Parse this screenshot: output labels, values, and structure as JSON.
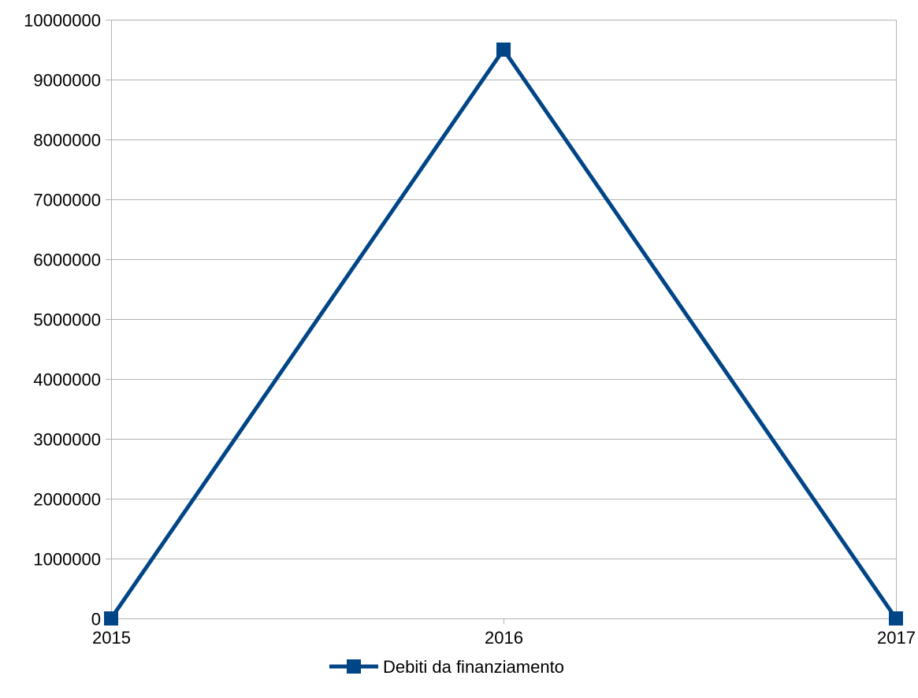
{
  "chart_data": {
    "type": "line",
    "title": "",
    "xlabel": "",
    "ylabel": "",
    "categories": [
      "2015",
      "2016",
      "2017"
    ],
    "series": [
      {
        "name": "Debiti da finanziamento",
        "values": [
          0,
          9500000,
          0
        ],
        "color": "#004586",
        "marker": "square"
      }
    ],
    "ylim": [
      0,
      10000000
    ],
    "yticks": [
      0,
      1000000,
      2000000,
      3000000,
      4000000,
      5000000,
      6000000,
      7000000,
      8000000,
      9000000,
      10000000
    ],
    "ytick_labels": [
      "0",
      "1000000",
      "2000000",
      "3000000",
      "4000000",
      "5000000",
      "6000000",
      "7000000",
      "8000000",
      "9000000",
      "10000000"
    ],
    "grid": true,
    "gridline_color": "#b3b3b3",
    "legend_position": "bottom"
  }
}
